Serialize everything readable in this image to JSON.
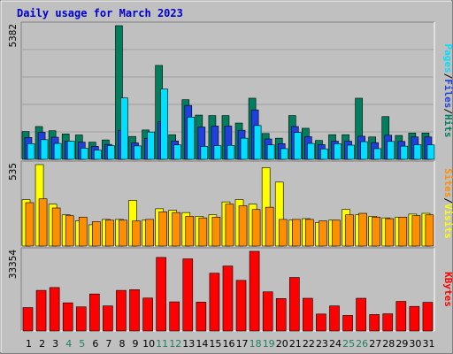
{
  "chart_data": {
    "type": "bar",
    "title": "Daily usage for March 2023",
    "categories": [
      "1",
      "2",
      "3",
      "4",
      "5",
      "6",
      "7",
      "8",
      "9",
      "10",
      "11",
      "12",
      "13",
      "14",
      "15",
      "16",
      "17",
      "18",
      "19",
      "20",
      "21",
      "22",
      "23",
      "24",
      "25",
      "26",
      "27",
      "28",
      "29",
      "30",
      "31"
    ],
    "weekend_days": [
      "4",
      "5",
      "11",
      "12",
      "18",
      "19",
      "25",
      "26"
    ],
    "colors": {
      "background": "#c0c0c0",
      "title": "#0000cc",
      "hits": "#007f5f",
      "files": "#1f3fdf",
      "pages": "#00dfff",
      "visits": "#ffff00",
      "sites": "#ff8f00",
      "kbytes": "#ff0000",
      "weekend_label": "#1f7f5f",
      "weekday_label": "#000000"
    },
    "panels": [
      {
        "id": "hits-files-pages",
        "ymax_label": "5382",
        "ylim": [
          0,
          5382
        ],
        "right_labels": [
          "Pages",
          "Files",
          "Hits"
        ],
        "series": [
          {
            "name": "Hits",
            "values": [
              1120,
              1320,
              1150,
              1020,
              980,
              690,
              780,
              5382,
              920,
              1180,
              3780,
              990,
              2400,
              1780,
              1760,
              1760,
              1460,
              2460,
              1040,
              850,
              1760,
              1250,
              760,
              990,
              990,
              2460,
              900,
              1720,
              960,
              1060,
              1060
            ]
          },
          {
            "name": "Files",
            "values": [
              880,
              1090,
              890,
              730,
              690,
              520,
              600,
              1170,
              660,
              850,
              1510,
              740,
              2170,
              1300,
              1340,
              1340,
              1170,
              1990,
              820,
              630,
              1320,
              910,
              590,
              730,
              730,
              930,
              670,
              970,
              720,
              900,
              900
            ]
          },
          {
            "name": "Pages",
            "values": [
              630,
              790,
              640,
              730,
              450,
              370,
              550,
              2470,
              540,
              1100,
              2830,
              580,
              1700,
              520,
              550,
              560,
              850,
              1360,
              580,
              430,
              1080,
              640,
              420,
              630,
              570,
              710,
              430,
              720,
              530,
              590,
              580
            ]
          }
        ]
      },
      {
        "id": "visits-sites",
        "ymax_label": "535",
        "ylim": [
          0,
          535
        ],
        "right_labels": [
          "Sites",
          "Visits"
        ],
        "series": [
          {
            "name": "Visits",
            "values": [
              305,
              535,
              275,
              205,
              165,
              140,
              175,
              175,
              300,
              170,
              245,
              235,
              220,
              195,
              205,
              290,
              305,
              275,
              515,
              420,
              170,
              180,
              155,
              170,
              240,
              205,
              195,
              185,
              190,
              210,
              215
            ]
          },
          {
            "name": "Sites",
            "values": [
              285,
              310,
              250,
              200,
              190,
              160,
              170,
              170,
              165,
              175,
              225,
              220,
              195,
              185,
              190,
              275,
              265,
              240,
              255,
              175,
              175,
              175,
              165,
              170,
              205,
              215,
              190,
              180,
              190,
              200,
              205
            ]
          }
        ]
      },
      {
        "id": "kbytes",
        "ymax_label": "33354",
        "ylim": [
          0,
          33354
        ],
        "right_labels": [
          "KBytes"
        ],
        "series": [
          {
            "name": "KBytes",
            "values": [
              9800,
              17000,
              18200,
              11800,
              10100,
              15500,
              10500,
              17000,
              17300,
              13800,
              30800,
              12200,
              30200,
              12100,
              24200,
              27200,
              21200,
              33354,
              16400,
              13600,
              22400,
              13700,
              7100,
              10500,
              6500,
              13700,
              6900,
              7200,
              12400,
              10300,
              12000
            ]
          }
        ]
      }
    ]
  }
}
